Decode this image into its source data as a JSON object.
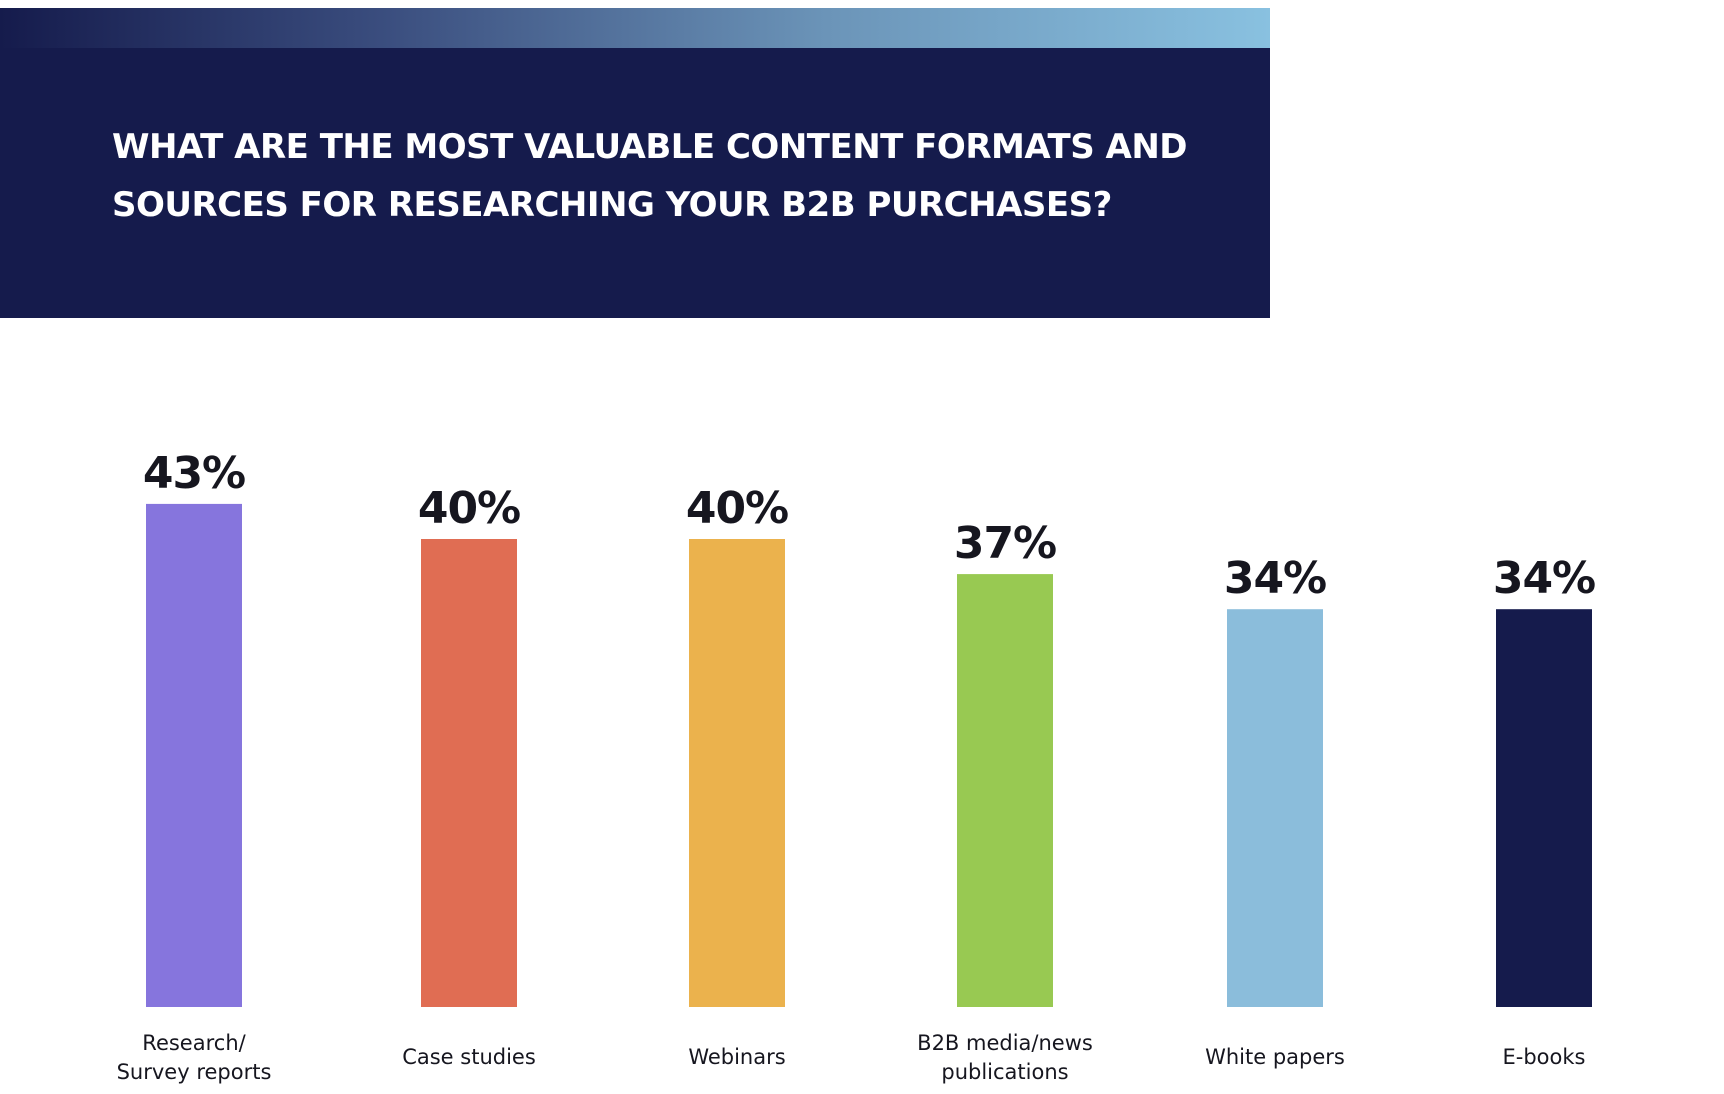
{
  "header": {
    "title": "WHAT ARE THE MOST VALUABLE CONTENT FORMATS AND\nSOURCES FOR RESEARCHING YOUR B2B PURCHASES?"
  },
  "colors": {
    "header_bg": "#151b4c",
    "gradient_start": "#151b4c",
    "gradient_end": "#89c1e0",
    "value_text": "#16161f"
  },
  "chart_data": {
    "type": "bar",
    "title": "WHAT ARE THE MOST VALUABLE CONTENT FORMATS AND SOURCES FOR RESEARCHING YOUR B2B PURCHASES?",
    "categories": [
      [
        "Research/",
        "Survey reports"
      ],
      [
        "Case studies"
      ],
      [
        "Webinars"
      ],
      [
        "B2B media/news",
        "publications"
      ],
      [
        "White papers"
      ],
      [
        "E-books"
      ]
    ],
    "values": [
      43,
      40,
      40,
      37,
      34,
      34
    ],
    "value_labels": [
      "43%",
      "40%",
      "40%",
      "37%",
      "34%",
      "34%"
    ],
    "colors": [
      "#8675dd",
      "#e06d53",
      "#ebb24d",
      "#98c952",
      "#8bbddb",
      "#151b4c"
    ],
    "unit": "%",
    "ylim": [
      0,
      43
    ],
    "grid": false,
    "legend": "none"
  }
}
